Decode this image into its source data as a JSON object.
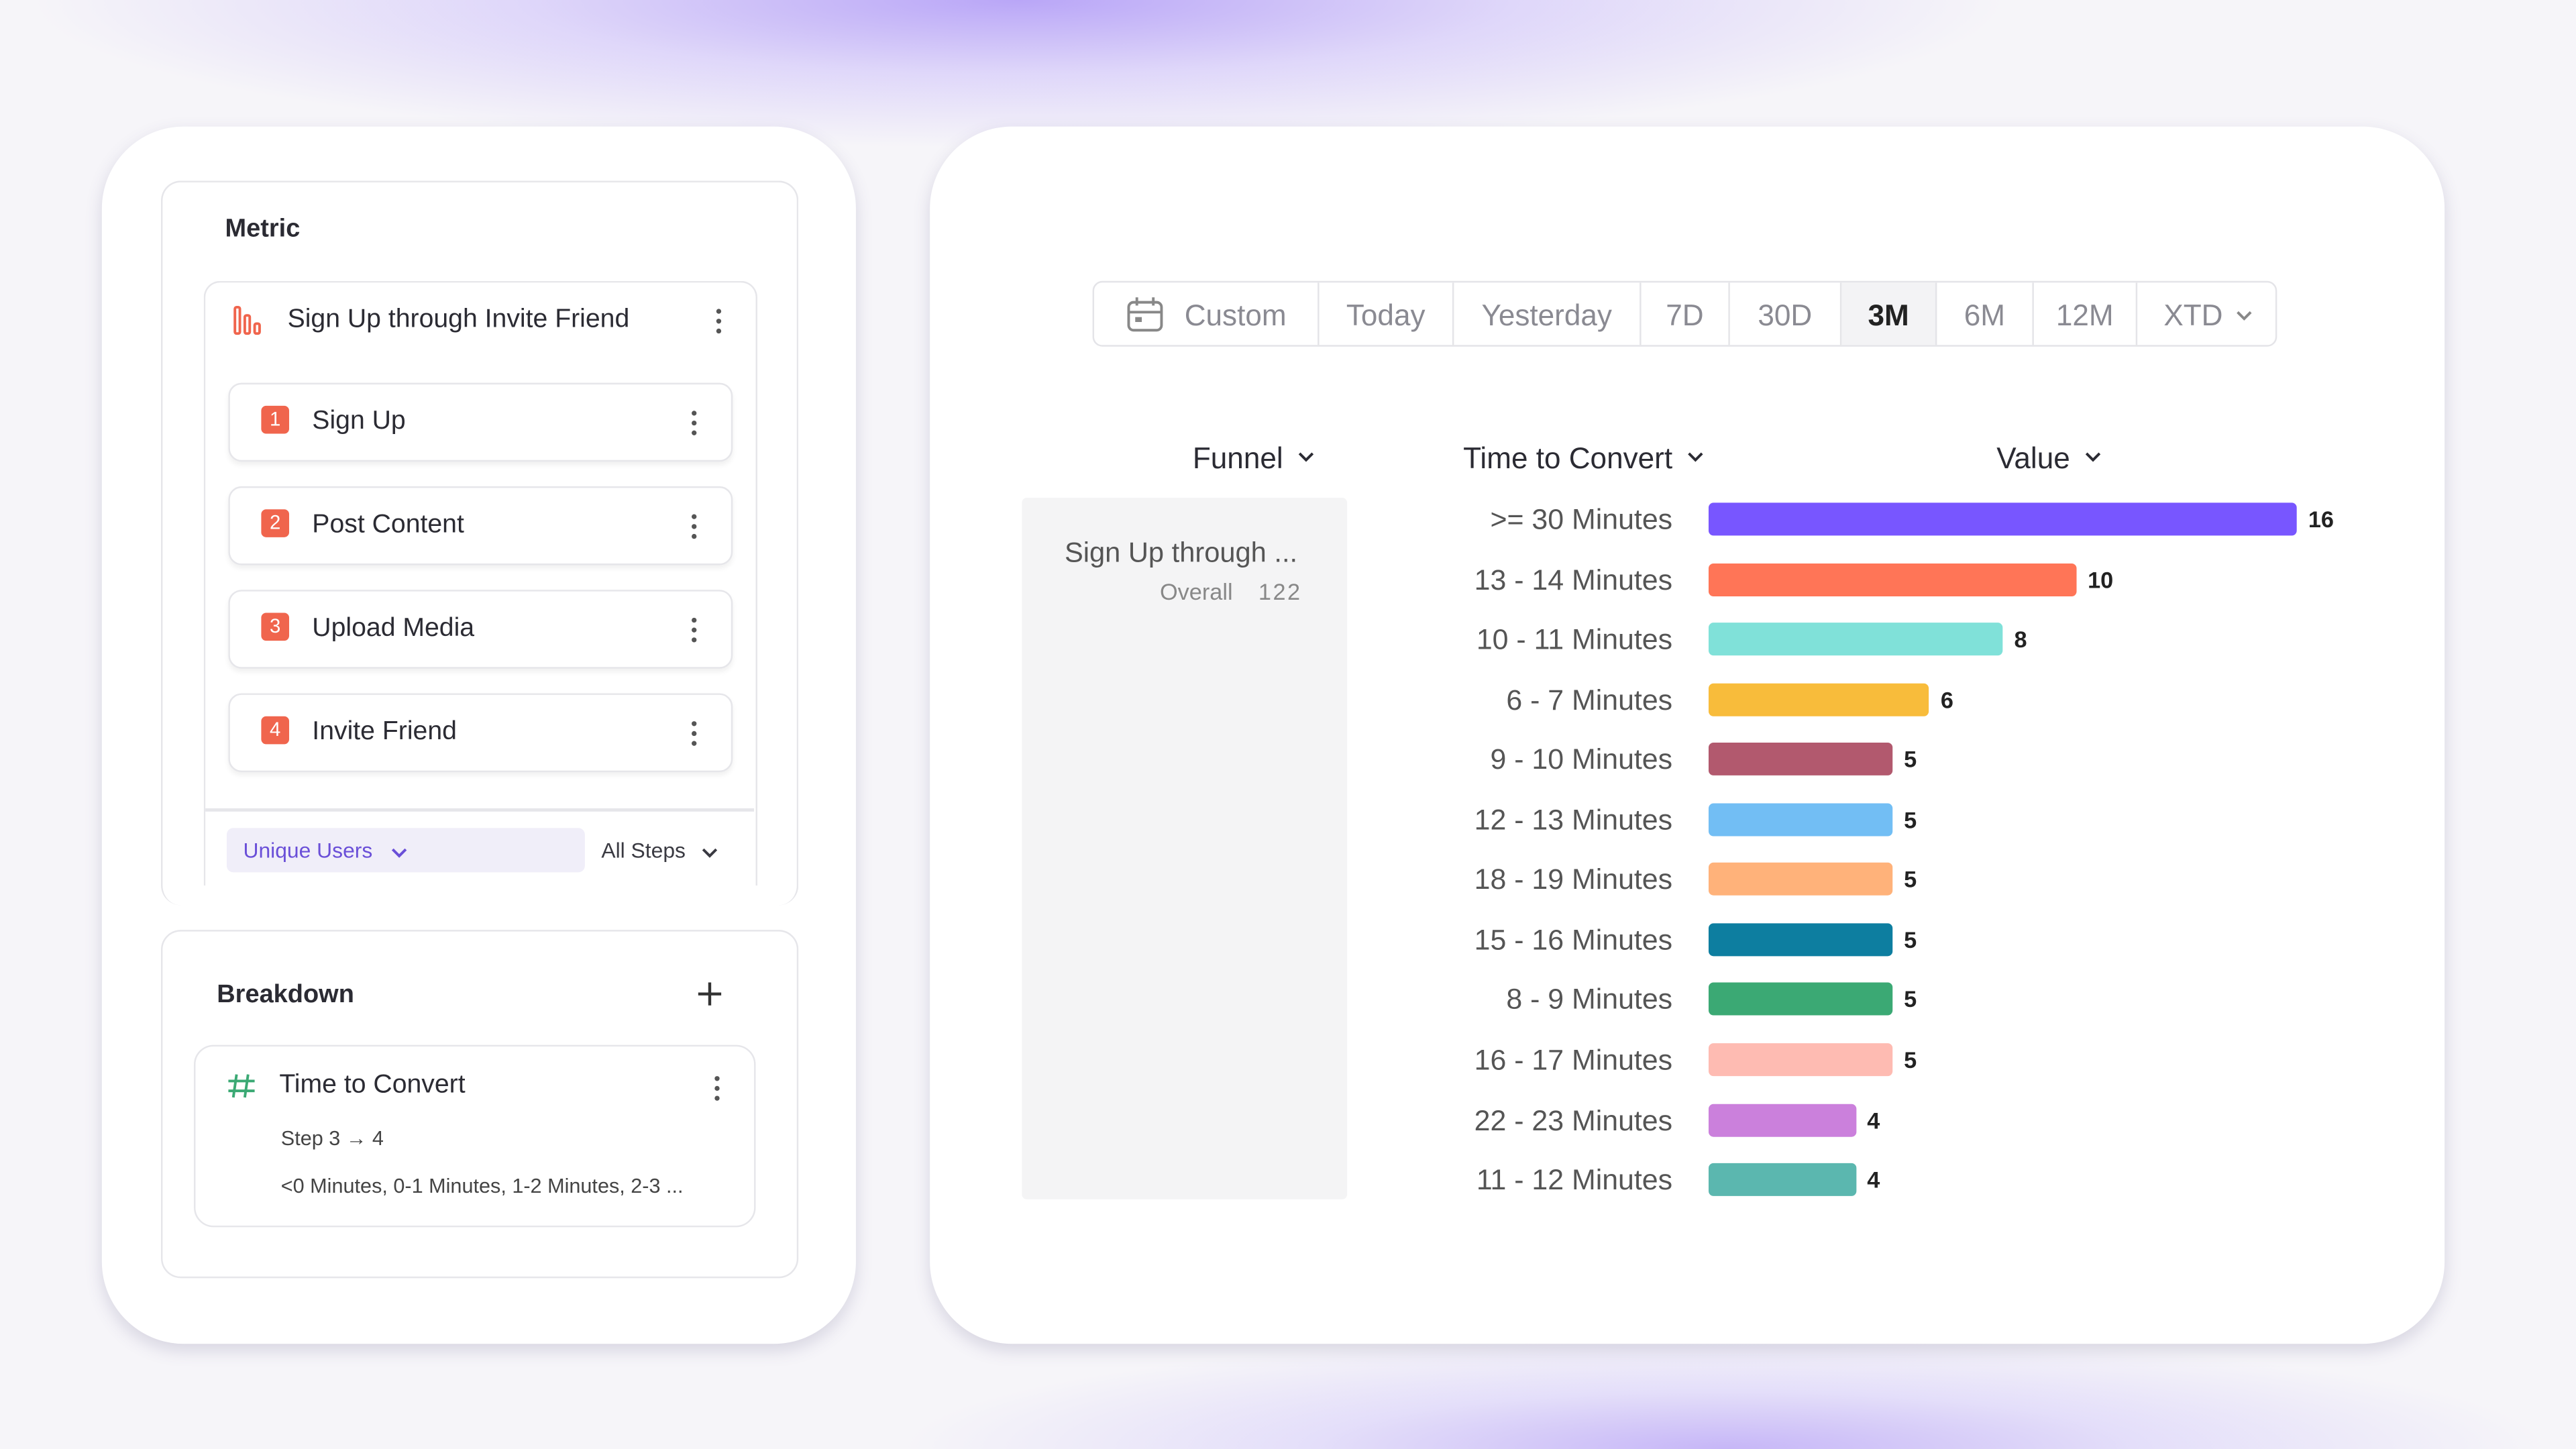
{
  "metric": {
    "title": "Metric",
    "funnel": "Sign Up through Invite Friend",
    "steps": [
      {
        "number": 1,
        "name": "Sign Up"
      },
      {
        "number": 2,
        "name": "Post Content"
      },
      {
        "number": 3,
        "name": "Upload Media"
      },
      {
        "number": 4,
        "name": "Invite Friend"
      }
    ],
    "measure": "Unique Users",
    "scope": "All Steps"
  },
  "breakdown": {
    "title": "Breakdown",
    "property": "Time to Convert",
    "step": "Step 3 → 4",
    "buckets": "<0 Minutes, 0-1 Minutes, 1-2 Minutes, 2-3 ..."
  },
  "date_range": {
    "options": [
      "Custom",
      "Today",
      "Yesterday",
      "7D",
      "30D",
      "3M",
      "6M",
      "12M",
      "XTD"
    ],
    "selected": "3M"
  },
  "table": {
    "headers": [
      "Funnel",
      "Time to Convert",
      "Value"
    ],
    "funnel": {
      "name": "Sign Up through ...",
      "segment": "Overall",
      "total": 122
    }
  },
  "chart_data": {
    "type": "bar",
    "orientation": "horizontal",
    "categories": [
      ">= 30 Minutes",
      "13 - 14 Minutes",
      "10 - 11 Minutes",
      "6 - 7 Minutes",
      "9 - 10 Minutes",
      "12 - 13 Minutes",
      "18 - 19 Minutes",
      "15 - 16 Minutes",
      "8 - 9 Minutes",
      "16 - 17 Minutes",
      "22 - 23 Minutes",
      "11 - 12 Minutes"
    ],
    "values": [
      16,
      10,
      8,
      6,
      5,
      5,
      5,
      5,
      5,
      5,
      4,
      4
    ],
    "colors": [
      "#7856ff",
      "#ff7557",
      "#80e1d9",
      "#f8bc3b",
      "#b2596e",
      "#72bef4",
      "#ffb27a",
      "#0d7ea0",
      "#3ba974",
      "#febbb2",
      "#cb80dc",
      "#5bb7af"
    ]
  }
}
